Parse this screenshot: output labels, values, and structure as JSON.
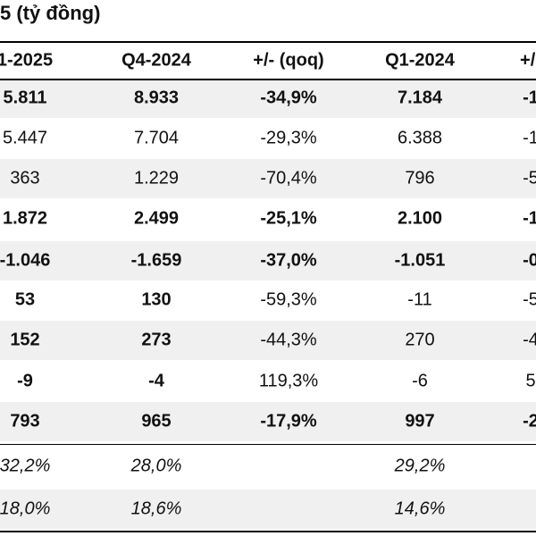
{
  "header": {
    "title": "5 (tỷ đồng)"
  },
  "table": {
    "columns": [
      "1-2025",
      "Q4-2024",
      "+/- (qoq)",
      "Q1-2024",
      "+/-"
    ],
    "rows": [
      [
        "5.811",
        "8.933",
        "-34,9%",
        "7.184",
        "-1"
      ],
      [
        "5.447",
        "7.704",
        "-29,3%",
        "6.388",
        "-1"
      ],
      [
        "363",
        "1.229",
        "-70,4%",
        "796",
        "-5"
      ],
      [
        "1.872",
        "2.499",
        "-25,1%",
        "2.100",
        "-1"
      ],
      [
        "-1.046",
        "-1.659",
        "-37,0%",
        "-1.051",
        "-0"
      ],
      [
        "53",
        "130",
        "-59,3%",
        "-11",
        "-5"
      ],
      [
        "152",
        "273",
        "-44,3%",
        "270",
        "-4"
      ],
      [
        "-9",
        "-4",
        "119,3%",
        "-6",
        "5"
      ],
      [
        "793",
        "965",
        "-17,9%",
        "997",
        "-2"
      ],
      [
        "32,2%",
        "28,0%",
        null,
        "29,2%",
        null
      ],
      [
        "18,0%",
        "18,6%",
        null,
        "14,6%",
        null
      ]
    ]
  }
}
